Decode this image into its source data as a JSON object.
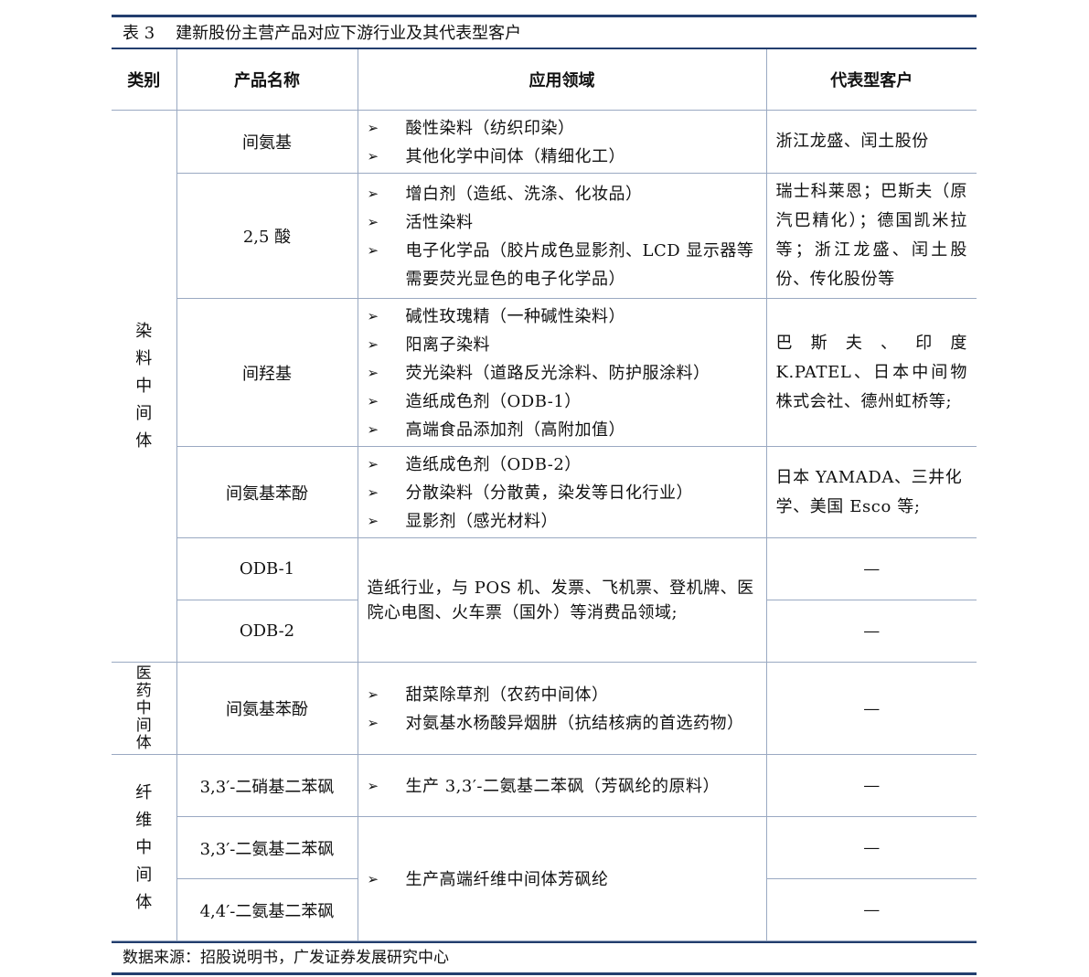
{
  "caption": {
    "number": "表 3",
    "title": "建新股份主营产品对应下游行业及其代表型客户"
  },
  "headers": [
    "类别",
    "产品名称",
    "应用领域",
    "代表型客户"
  ],
  "bullet_icon": "arrowhead-bullet-icon",
  "categories": {
    "dye": [
      "染",
      "料",
      "中",
      "间",
      "体"
    ],
    "pharma": [
      "医",
      "药",
      "中",
      "间",
      "体"
    ],
    "fiber": [
      "纤",
      "维",
      "中",
      "间",
      "体"
    ]
  },
  "rows": {
    "r1": {
      "product": "间氨基",
      "apps": [
        "酸性染料（纺织印染）",
        "其他化学中间体（精细化工）"
      ],
      "customer": "浙江龙盛、闰土股份"
    },
    "r2": {
      "product": "2,5 酸",
      "apps": [
        "增白剂（造纸、洗涤、化妆品）",
        "活性染料",
        "电子化学品（胶片成色显影剂、LCD 显示器等需要荧光显色的电子化学品）"
      ],
      "customer": "瑞士科莱恩；巴斯夫（原汽巴精化）；德国凯米拉等；浙江龙盛、闰土股份、传化股份等"
    },
    "r3": {
      "product": "间羟基",
      "apps": [
        "碱性玫瑰精（一种碱性染料）",
        "阳离子染料",
        "荧光染料（道路反光涂料、防护服涂料）",
        "造纸成色剂（ODB-1）",
        "高端食品添加剂（高附加值）"
      ],
      "customer": "巴斯夫、印度 K.PATEL、日本中间物株式会社、德州虹桥等;"
    },
    "r4": {
      "product": "间氨基苯酚",
      "apps": [
        "造纸成色剂（ODB-2）",
        "分散染料（分散黄，染发等日化行业）",
        "显影剂（感光材料）"
      ],
      "customer": "日本 YAMADA、三井化学、美国 Esco 等;"
    },
    "r5": {
      "product": "ODB-1",
      "customer": "—"
    },
    "r6": {
      "product": "ODB-2",
      "customer": "—"
    },
    "odb_app": "造纸行业，与 POS 机、发票、飞机票、登机牌、医院心电图、火车票（国外）等消费品领域;",
    "r7": {
      "product": "间氨基苯酚",
      "apps": [
        "甜菜除草剂（农药中间体）",
        "对氨基水杨酸异烟肼（抗结核病的首选药物）"
      ],
      "customer": "—"
    },
    "r8": {
      "product": "3,3′-二硝基二苯砜",
      "apps": [
        "生产 3,3′-二氨基二苯砜（芳砜纶的原料）"
      ],
      "customer": "—"
    },
    "r9": {
      "product": "3,3′-二氨基二苯砜",
      "customer": "—"
    },
    "r10": {
      "product": "4,4′-二氨基二苯砜",
      "customer": "—"
    },
    "fiber_app": "生产高端纤维中间体芳砜纶"
  },
  "source": "数据来源：招股说明书，广发证券发展研究中心"
}
